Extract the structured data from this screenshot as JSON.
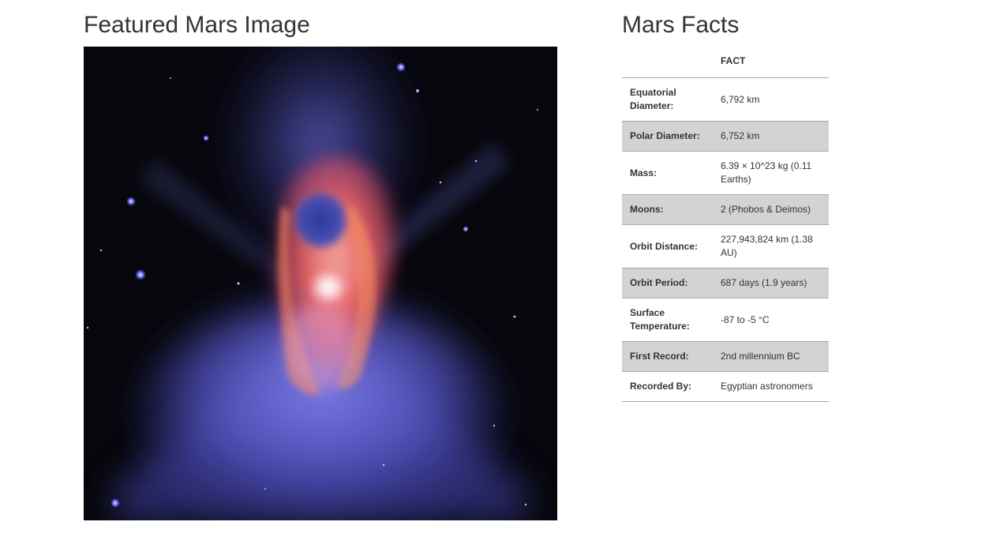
{
  "featured": {
    "heading": "Featured Mars Image",
    "image_subject": "nebula-image"
  },
  "facts": {
    "heading": "Mars Facts",
    "columns": [
      "",
      "FACT"
    ],
    "rows": [
      {
        "label": "Equatorial Diameter:",
        "value": "6,792 km"
      },
      {
        "label": "Polar Diameter:",
        "value": "6,752 km"
      },
      {
        "label": "Mass:",
        "value": "6.39 × 10^23 kg (0.11 Earths)"
      },
      {
        "label": "Moons:",
        "value": "2 (Phobos & Deimos)"
      },
      {
        "label": "Orbit Distance:",
        "value": "227,943,824 km (1.38 AU)"
      },
      {
        "label": "Orbit Period:",
        "value": "687 days (1.9 years)"
      },
      {
        "label": "Surface Temperature:",
        "value": "-87 to -5 °C"
      },
      {
        "label": "First Record:",
        "value": "2nd millennium BC"
      },
      {
        "label": "Recorded By:",
        "value": "Egyptian astronomers"
      }
    ]
  },
  "colors": {
    "text": "#333333",
    "row_shade": "#d3d3d3",
    "row_border": "#a8a8a8",
    "image_background": "#06060c"
  }
}
